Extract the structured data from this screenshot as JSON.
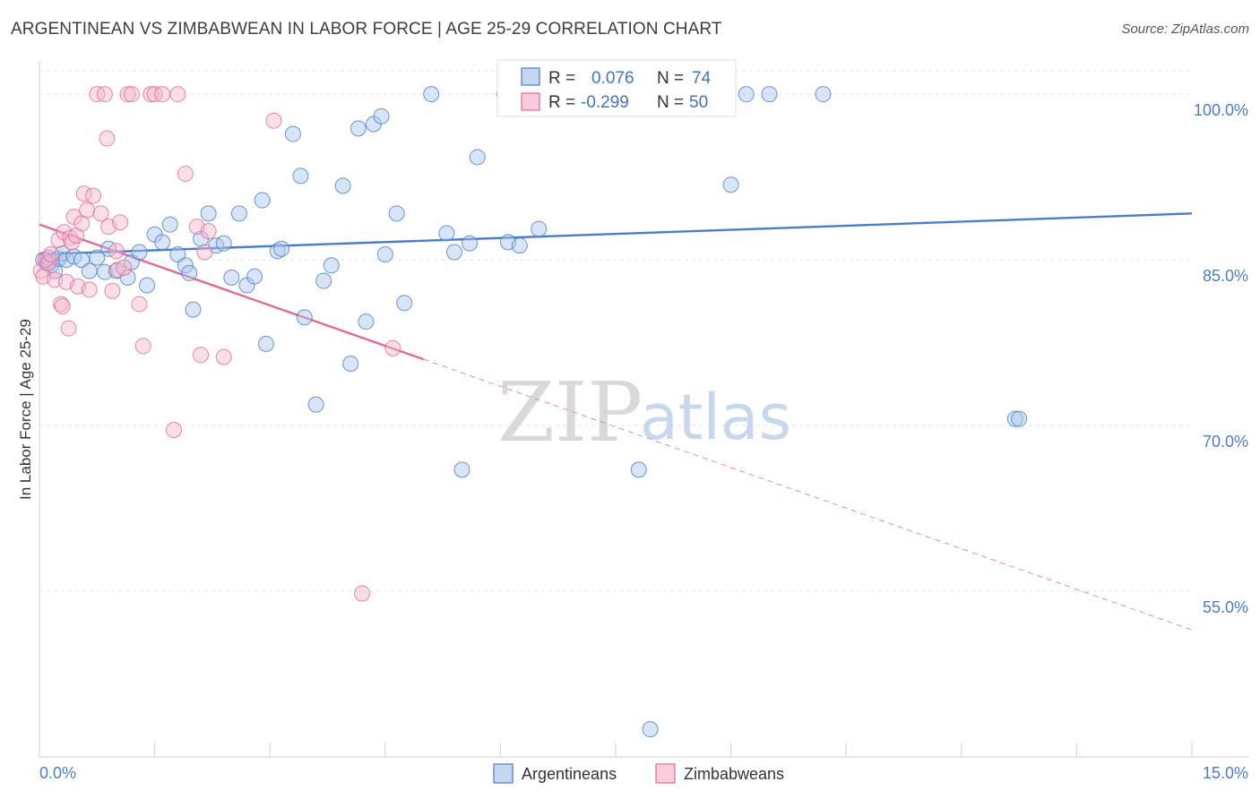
{
  "title": "ARGENTINEAN VS ZIMBABWEAN IN LABOR FORCE | AGE 25-29 CORRELATION CHART",
  "source": "Source: ZipAtlas.com",
  "watermark": {
    "zip": "ZIP",
    "atlas": "atlas"
  },
  "colors": {
    "blue": "#4a7cc7",
    "blue_fill": "#a9c6ee",
    "pink": "#e06a96",
    "pink_fill": "#f5b6cc"
  },
  "legend": {
    "r_label": "R =",
    "n_label": "N =",
    "rows": [
      {
        "r": "0.076",
        "n": "74"
      },
      {
        "r": "-0.299",
        "n": "50"
      }
    ]
  },
  "chart_data": {
    "type": "scatter",
    "ylabel": "In Labor Force | Age 25-29",
    "xlim": [
      0,
      15
    ],
    "ylim": [
      40,
      103.5
    ],
    "xtick_labels": [
      "0.0%",
      "15.0%"
    ],
    "ytick_values": [
      55,
      70,
      85,
      100
    ],
    "ytick_labels": [
      "55.0%",
      "70.0%",
      "85.0%",
      "100.0%"
    ],
    "grid": true,
    "series": [
      {
        "name": "Argentineans",
        "color": "#4a7cc7",
        "trend": {
          "x": [
            0,
            15
          ],
          "y": [
            85.5,
            89.2
          ]
        },
        "points": [
          [
            0.05,
            85.0
          ],
          [
            0.1,
            84.7
          ],
          [
            0.12,
            85.2
          ],
          [
            0.15,
            84.5
          ],
          [
            0.2,
            84.0
          ],
          [
            0.25,
            85.1
          ],
          [
            0.3,
            85.6
          ],
          [
            0.35,
            85.0
          ],
          [
            0.45,
            85.3
          ],
          [
            0.55,
            85.0
          ],
          [
            0.65,
            84.0
          ],
          [
            0.75,
            85.2
          ],
          [
            0.85,
            83.9
          ],
          [
            0.9,
            86.0
          ],
          [
            1.0,
            84.0
          ],
          [
            1.15,
            83.4
          ],
          [
            1.2,
            84.8
          ],
          [
            1.3,
            85.7
          ],
          [
            1.4,
            82.7
          ],
          [
            1.5,
            87.3
          ],
          [
            1.6,
            86.6
          ],
          [
            1.7,
            88.2
          ],
          [
            1.8,
            85.5
          ],
          [
            1.9,
            84.5
          ],
          [
            1.95,
            83.8
          ],
          [
            2.0,
            80.5
          ],
          [
            2.1,
            86.9
          ],
          [
            2.2,
            89.2
          ],
          [
            2.3,
            86.3
          ],
          [
            2.4,
            86.5
          ],
          [
            2.5,
            83.4
          ],
          [
            2.6,
            89.2
          ],
          [
            2.7,
            82.7
          ],
          [
            2.8,
            83.5
          ],
          [
            2.9,
            90.4
          ],
          [
            2.95,
            77.4
          ],
          [
            3.1,
            85.8
          ],
          [
            3.15,
            86.0
          ],
          [
            3.3,
            96.4
          ],
          [
            3.4,
            92.6
          ],
          [
            3.45,
            79.8
          ],
          [
            3.6,
            71.9
          ],
          [
            3.7,
            83.1
          ],
          [
            3.8,
            84.5
          ],
          [
            3.95,
            91.7
          ],
          [
            4.05,
            75.6
          ],
          [
            4.15,
            96.9
          ],
          [
            4.25,
            79.4
          ],
          [
            4.35,
            97.3
          ],
          [
            4.45,
            98.0
          ],
          [
            4.5,
            85.5
          ],
          [
            4.65,
            89.2
          ],
          [
            4.75,
            81.1
          ],
          [
            5.1,
            100.0
          ],
          [
            5.3,
            87.4
          ],
          [
            5.4,
            85.7
          ],
          [
            5.5,
            66.0
          ],
          [
            5.6,
            86.5
          ],
          [
            5.7,
            94.3
          ],
          [
            6.05,
            100.0
          ],
          [
            6.1,
            86.6
          ],
          [
            6.25,
            86.3
          ],
          [
            6.5,
            87.8
          ],
          [
            6.7,
            100.0
          ],
          [
            7.2,
            100.0
          ],
          [
            7.8,
            66.0
          ],
          [
            7.95,
            42.5
          ],
          [
            8.9,
            100.0
          ],
          [
            9.0,
            91.8
          ],
          [
            9.2,
            100.0
          ],
          [
            9.5,
            100.0
          ],
          [
            10.2,
            100.0
          ],
          [
            12.7,
            70.6
          ],
          [
            12.75,
            70.6
          ]
        ]
      },
      {
        "name": "Zimbabweans",
        "color": "#e06a96",
        "trend": {
          "x": [
            0,
            5.0
          ],
          "y": [
            88.2,
            76.0
          ]
        },
        "trend_dashed": {
          "x": [
            5.0,
            15
          ],
          "y": [
            76.0,
            51.5
          ]
        },
        "points": [
          [
            0.02,
            84.0
          ],
          [
            0.05,
            83.5
          ],
          [
            0.08,
            85.0
          ],
          [
            0.12,
            84.7
          ],
          [
            0.15,
            85.5
          ],
          [
            0.2,
            83.2
          ],
          [
            0.25,
            86.8
          ],
          [
            0.28,
            81.0
          ],
          [
            0.3,
            80.8
          ],
          [
            0.32,
            87.5
          ],
          [
            0.35,
            83.0
          ],
          [
            0.38,
            78.8
          ],
          [
            0.4,
            87.0
          ],
          [
            0.42,
            86.6
          ],
          [
            0.45,
            88.9
          ],
          [
            0.48,
            87.2
          ],
          [
            0.5,
            82.6
          ],
          [
            0.55,
            88.3
          ],
          [
            0.58,
            91.0
          ],
          [
            0.62,
            89.5
          ],
          [
            0.65,
            82.3
          ],
          [
            0.7,
            90.8
          ],
          [
            0.75,
            100.0
          ],
          [
            0.8,
            89.2
          ],
          [
            0.85,
            100.0
          ],
          [
            0.88,
            96.0
          ],
          [
            0.9,
            88.0
          ],
          [
            0.95,
            82.2
          ],
          [
            1.0,
            85.8
          ],
          [
            1.02,
            84.1
          ],
          [
            1.05,
            88.4
          ],
          [
            1.1,
            84.3
          ],
          [
            1.15,
            100.0
          ],
          [
            1.2,
            100.0
          ],
          [
            1.3,
            81.0
          ],
          [
            1.35,
            77.2
          ],
          [
            1.45,
            100.0
          ],
          [
            1.5,
            100.0
          ],
          [
            1.6,
            100.0
          ],
          [
            1.75,
            69.6
          ],
          [
            1.8,
            100.0
          ],
          [
            1.9,
            92.8
          ],
          [
            2.05,
            88.0
          ],
          [
            2.1,
            76.4
          ],
          [
            2.15,
            85.7
          ],
          [
            2.2,
            87.6
          ],
          [
            2.4,
            76.2
          ],
          [
            3.05,
            97.6
          ],
          [
            4.2,
            54.8
          ],
          [
            4.6,
            77.0
          ]
        ]
      }
    ],
    "bottom_legend": [
      "Argentineans",
      "Zimbabweans"
    ]
  }
}
